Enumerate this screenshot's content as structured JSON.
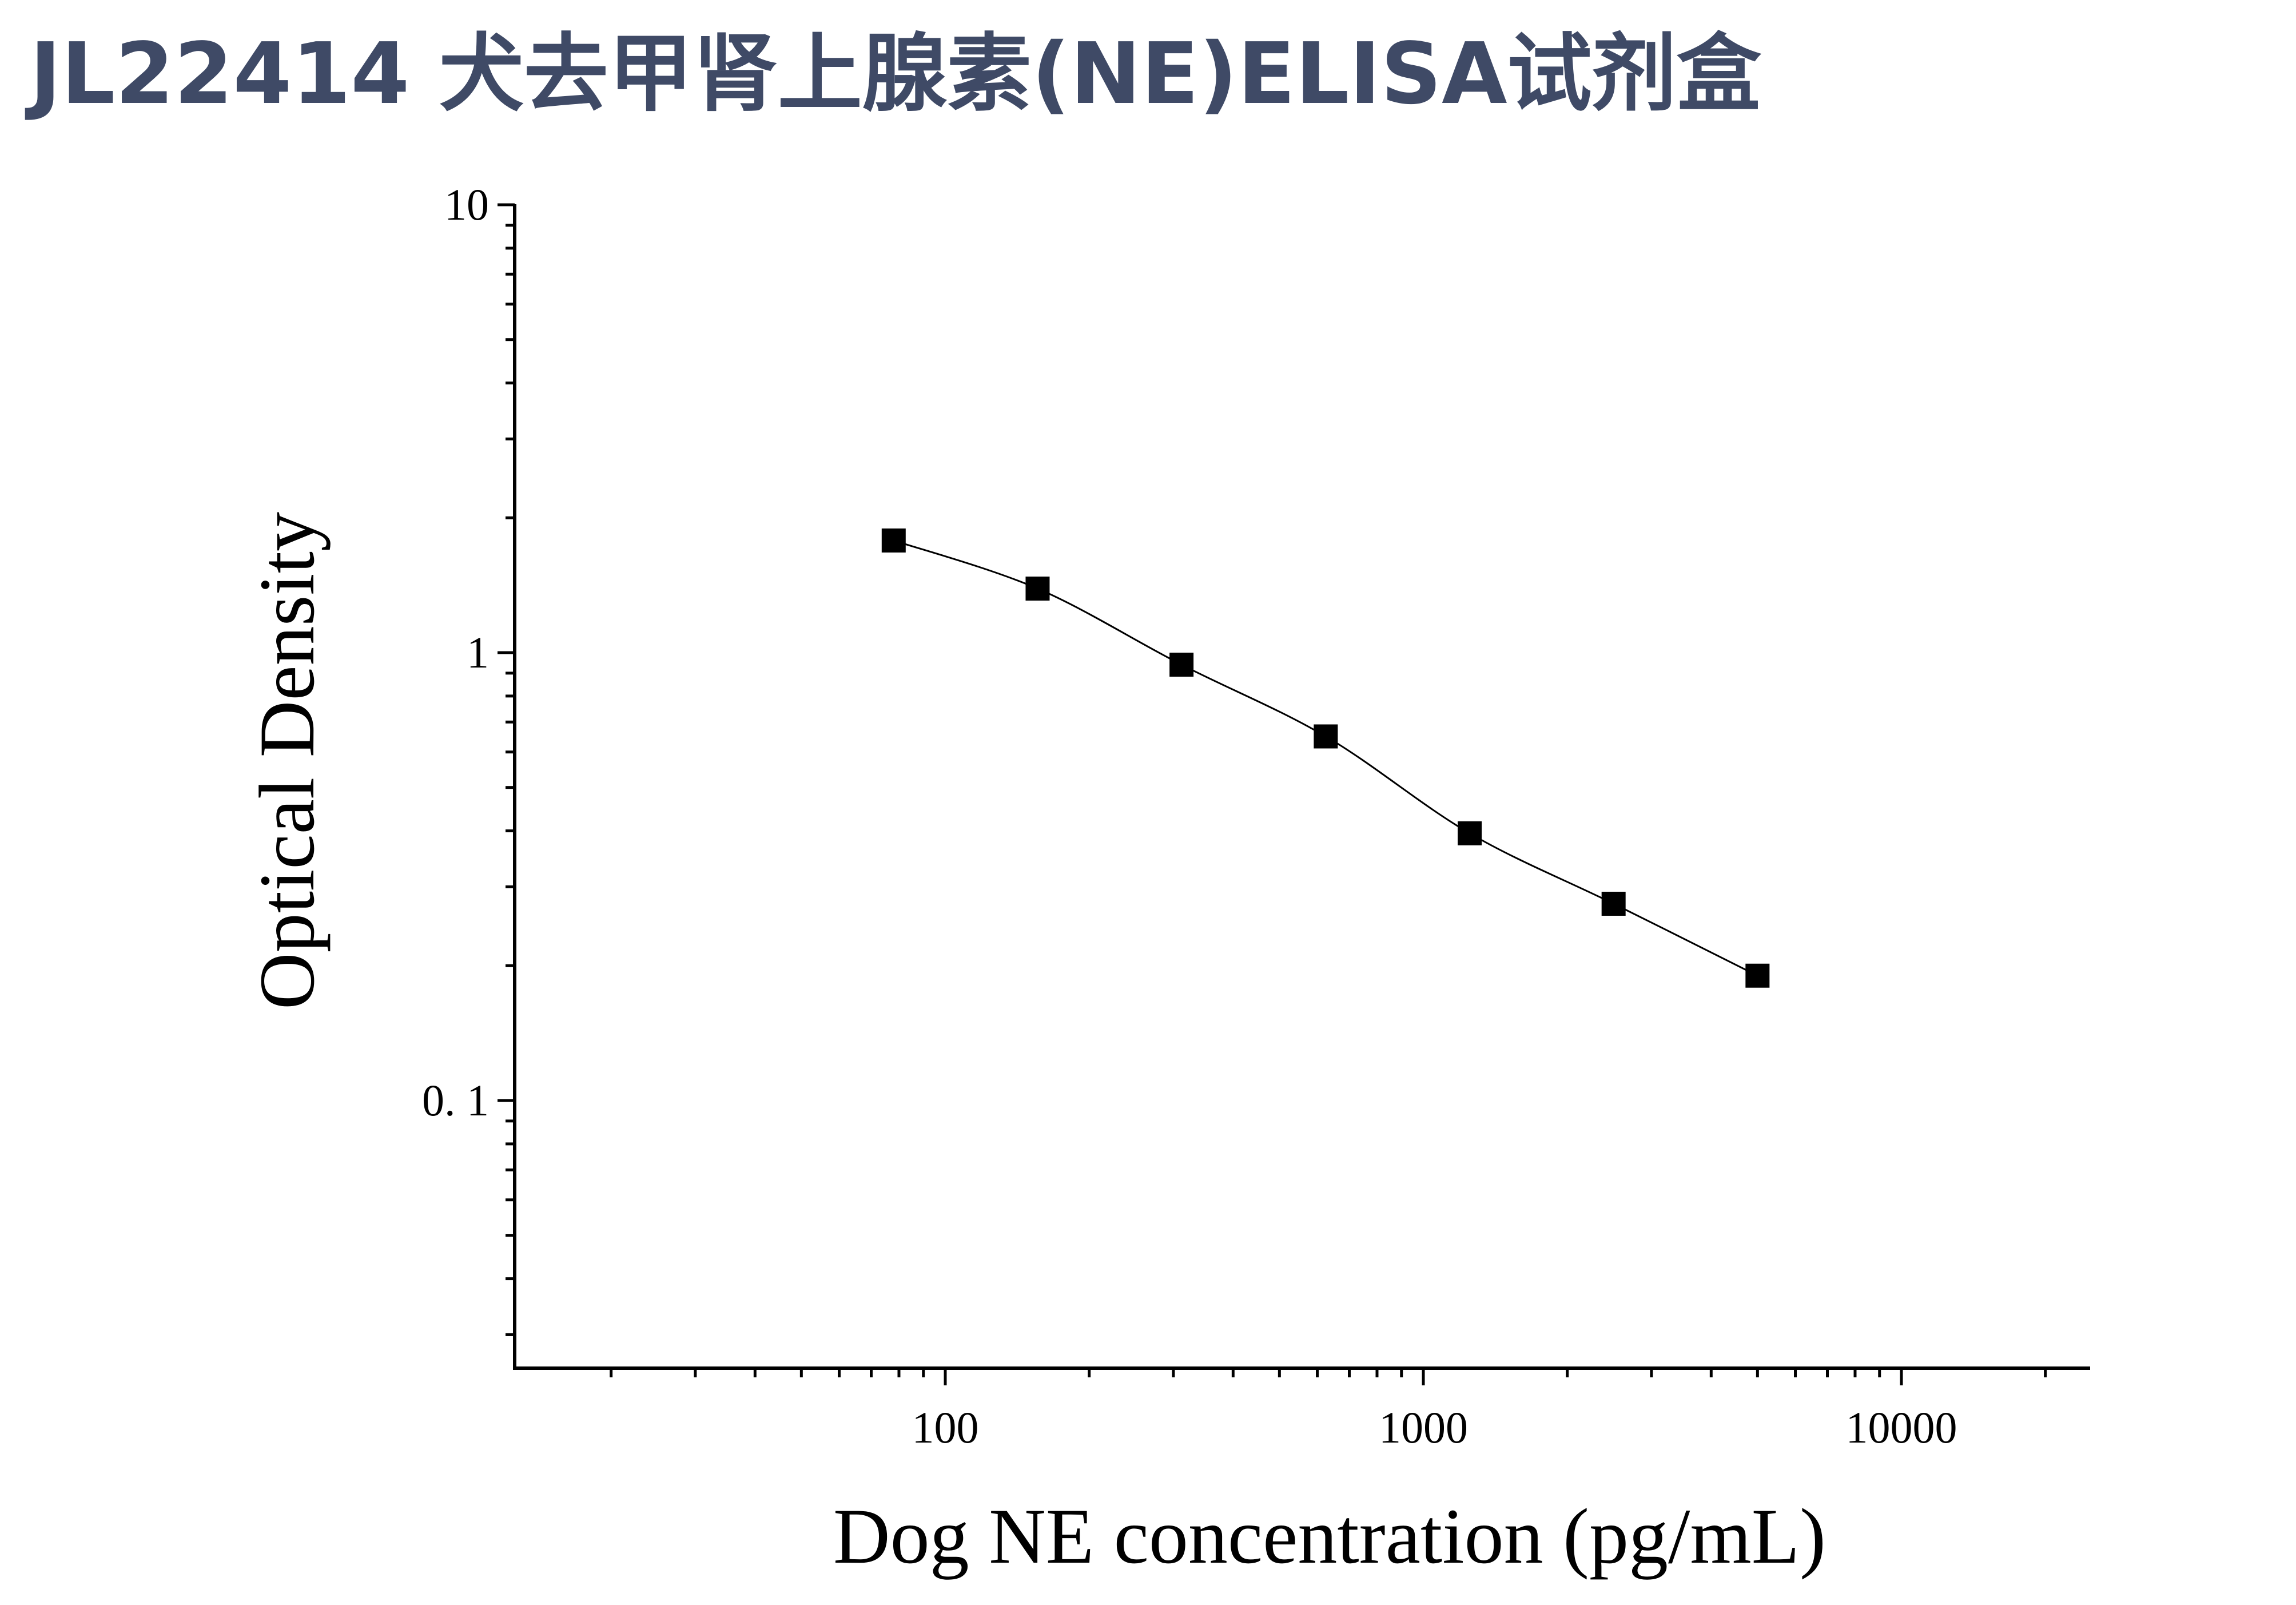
{
  "page_title": "JL22414 犬去甲肾上腺素(NE)ELISA试剂盒",
  "colors": {
    "title": "#3f4a66",
    "axis": "#000000",
    "marker": "#000000",
    "curve": "#000000"
  },
  "chart_data": {
    "type": "scatter",
    "title": "",
    "xlabel": "Dog NE concentration (pg/mL)",
    "ylabel": "Optical Density",
    "x_scale": "log",
    "y_scale": "log",
    "xlim": [
      10,
      25000
    ],
    "ylim": [
      0.025,
      10
    ],
    "x_ticks": [
      {
        "value": 100,
        "label": "100"
      },
      {
        "value": 1000,
        "label": "1000"
      },
      {
        "value": 10000,
        "label": "10000"
      }
    ],
    "y_ticks": [
      {
        "value": 10,
        "label": "10"
      },
      {
        "value": 1,
        "label": "1"
      },
      {
        "value": 0.1,
        "label": "0. 1"
      }
    ],
    "grid": false,
    "legend": "none",
    "series": [
      {
        "marker": "square",
        "x": [
          78,
          156,
          312,
          625,
          1250,
          2500,
          5000
        ],
        "y": [
          1.78,
          1.39,
          0.94,
          0.65,
          0.395,
          0.275,
          0.19
        ]
      }
    ],
    "fit_curve": "smooth"
  }
}
